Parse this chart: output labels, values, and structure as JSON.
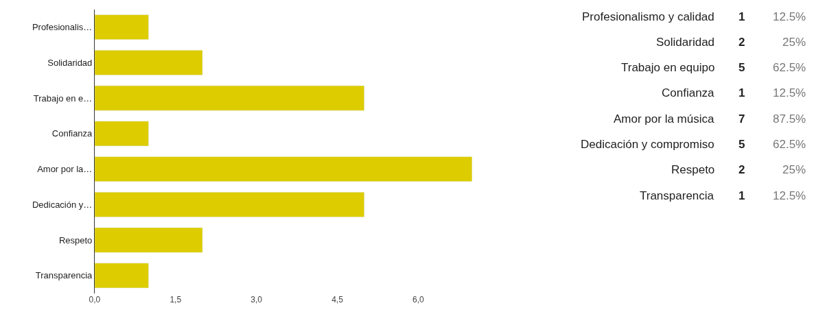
{
  "chart_data": [
    {
      "type": "bar",
      "orientation": "horizontal",
      "categories": [
        "Profesionalis…",
        "Solidaridad",
        "Trabajo en e…",
        "Confianza",
        "Amor por la…",
        "Dedicación y…",
        "Respeto",
        "Transparencia"
      ],
      "values": [
        1,
        2,
        5,
        1,
        7,
        5,
        2,
        1
      ],
      "color": "#dccc00",
      "xlim": [
        0,
        7
      ],
      "xticks": [
        {
          "value": 0,
          "label": "0,0"
        },
        {
          "value": 1.5,
          "label": "1,5"
        },
        {
          "value": 3,
          "label": "3,0"
        },
        {
          "value": 4.5,
          "label": "4,5"
        },
        {
          "value": 6,
          "label": "6,0"
        }
      ],
      "tick_labels": "xy"
    },
    {
      "type": "other",
      "categories": [
        "Profesionalismo y calidad",
        "Solidaridad",
        "Trabajo en equipo",
        "Confianza",
        "Amor por la música",
        "Dedicación y compromiso",
        "Respeto",
        "Transparencia"
      ],
      "values": [
        1,
        2,
        5,
        1,
        7,
        5,
        2,
        1
      ],
      "data_labels": true,
      "annotations": [
        "12.5%",
        "25%",
        "62.5%",
        "12.5%",
        "87.5%",
        "62.5%",
        "25%",
        "12.5%"
      ]
    }
  ]
}
